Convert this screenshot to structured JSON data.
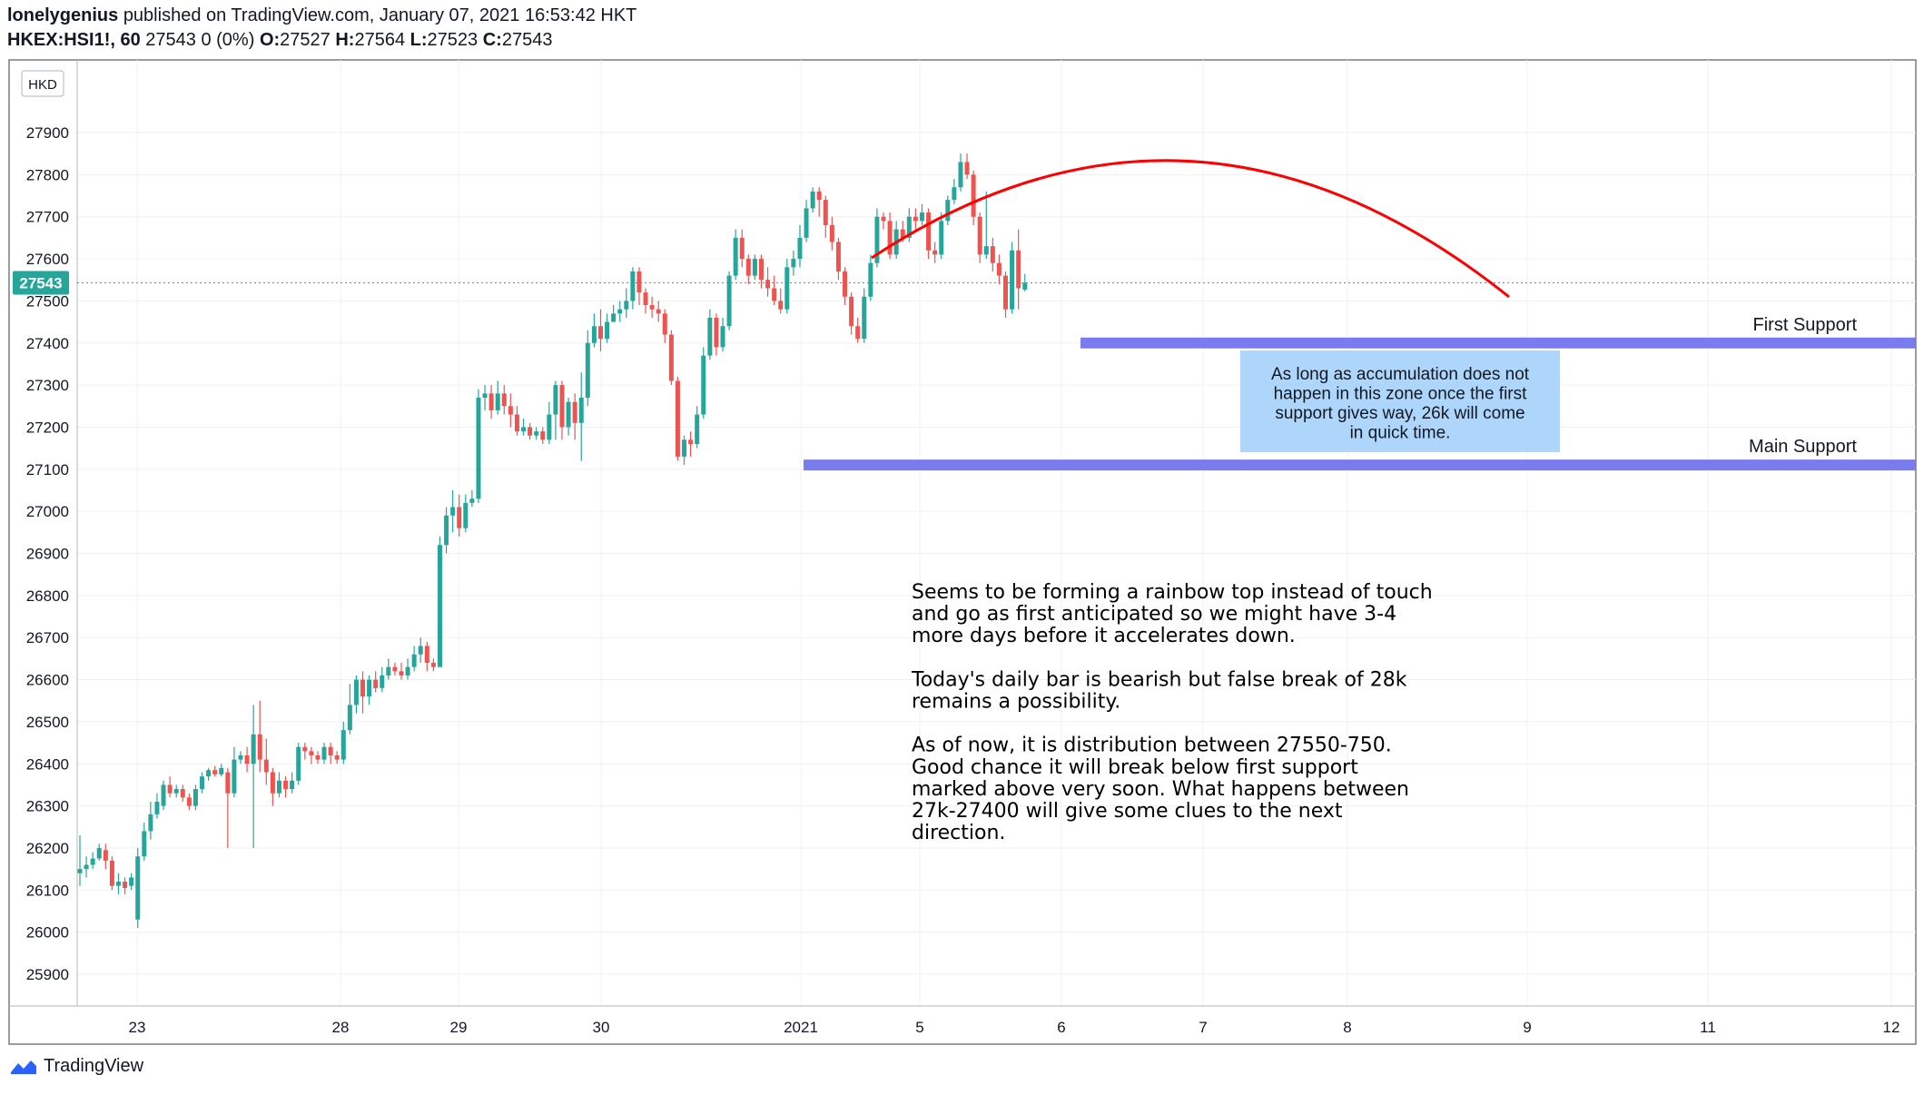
{
  "header": {
    "author": "lonelygenius",
    "published": "published on TradingView.com, January 07, 2021 16:53:42 HKT",
    "symbol": "HKEX:HSI1!, 60",
    "last": "27543",
    "change": "0 (0%)",
    "o_label": "O:",
    "o_value": "27527",
    "h_label": "H:",
    "h_value": "27564",
    "l_label": "L:",
    "l_value": "27523",
    "c_label": "C:",
    "c_value": "27543"
  },
  "footer": {
    "brand": "TradingView"
  },
  "colors": {
    "up": "#26a69a",
    "down": "#ef5350",
    "support_band": "#7b7bf0",
    "arc": "#ff0000",
    "note_box": "#aed6fb",
    "price_tag": "#26a69a",
    "grid": "#eef0f4"
  },
  "chart_data": {
    "type": "candlestick",
    "currency": "HKD",
    "current_price": 27543,
    "ylim": [
      25820,
      28000
    ],
    "y_ticks": [
      25900,
      26000,
      26100,
      26200,
      26300,
      26400,
      26500,
      26600,
      26700,
      26800,
      26900,
      27000,
      27100,
      27200,
      27300,
      27400,
      27500,
      27600,
      27700,
      27800,
      27900
    ],
    "x_ticks": [
      "23",
      "28",
      "29",
      "30",
      "2021",
      "5",
      "6",
      "7",
      "8",
      "9",
      "11",
      "12"
    ],
    "candles": [
      [
        26140,
        26150,
        26110,
        26230
      ],
      [
        26150,
        26160,
        26130,
        26180
      ],
      [
        26160,
        26175,
        26150,
        26190
      ],
      [
        26175,
        26200,
        26170,
        26210
      ],
      [
        26195,
        26170,
        26150,
        26210
      ],
      [
        26170,
        26110,
        26100,
        26180
      ],
      [
        26110,
        26120,
        26090,
        26140
      ],
      [
        26120,
        26105,
        26090,
        26130
      ],
      [
        26110,
        26130,
        26100,
        26140
      ],
      [
        26030,
        26180,
        26010,
        26200
      ],
      [
        26180,
        26240,
        26170,
        26260
      ],
      [
        26240,
        26280,
        26220,
        26310
      ],
      [
        26280,
        26310,
        26270,
        26330
      ],
      [
        26300,
        26350,
        26290,
        26360
      ],
      [
        26350,
        26330,
        26320,
        26370
      ],
      [
        26330,
        26340,
        26320,
        26350
      ],
      [
        26340,
        26320,
        26310,
        26350
      ],
      [
        26320,
        26300,
        26290,
        26330
      ],
      [
        26300,
        26340,
        26290,
        26350
      ],
      [
        26340,
        26370,
        26330,
        26380
      ],
      [
        26370,
        26385,
        26360,
        26390
      ],
      [
        26385,
        26375,
        26370,
        26395
      ],
      [
        26375,
        26390,
        26370,
        26400
      ],
      [
        26380,
        26330,
        26200,
        26390
      ],
      [
        26330,
        26410,
        26320,
        26440
      ],
      [
        26410,
        26420,
        26400,
        26430
      ],
      [
        26420,
        26400,
        26380,
        26440
      ],
      [
        26400,
        26470,
        26200,
        26540
      ],
      [
        26470,
        26410,
        26380,
        26550
      ],
      [
        26410,
        26380,
        26350,
        26460
      ],
      [
        26380,
        26330,
        26300,
        26390
      ],
      [
        26330,
        26360,
        26320,
        26380
      ],
      [
        26360,
        26340,
        26320,
        26370
      ],
      [
        26340,
        26360,
        26330,
        26380
      ],
      [
        26360,
        26440,
        26350,
        26450
      ],
      [
        26440,
        26430,
        26410,
        26450
      ],
      [
        26430,
        26420,
        26400,
        26440
      ],
      [
        26420,
        26410,
        26400,
        26430
      ],
      [
        26410,
        26440,
        26400,
        26450
      ],
      [
        26440,
        26420,
        26400,
        26450
      ],
      [
        26420,
        26410,
        26400,
        26430
      ],
      [
        26410,
        26480,
        26400,
        26500
      ],
      [
        26480,
        26540,
        26470,
        26590
      ],
      [
        26540,
        26600,
        26520,
        26610
      ],
      [
        26600,
        26560,
        26520,
        26620
      ],
      [
        26560,
        26600,
        26540,
        26610
      ],
      [
        26600,
        26580,
        26570,
        26620
      ],
      [
        26580,
        26610,
        26570,
        26630
      ],
      [
        26610,
        26630,
        26600,
        26650
      ],
      [
        26630,
        26620,
        26610,
        26640
      ],
      [
        26620,
        26610,
        26600,
        26640
      ],
      [
        26610,
        26630,
        26600,
        26650
      ],
      [
        26630,
        26660,
        26620,
        26680
      ],
      [
        26660,
        26680,
        26640,
        26700
      ],
      [
        26680,
        26640,
        26620,
        26690
      ],
      [
        26640,
        26630,
        26620,
        26650
      ],
      [
        26630,
        26920,
        26630,
        26940
      ],
      [
        26920,
        26990,
        26900,
        27010
      ],
      [
        26990,
        27010,
        26950,
        27050
      ],
      [
        27010,
        26960,
        26940,
        27040
      ],
      [
        26960,
        27020,
        26950,
        27040
      ],
      [
        27020,
        27030,
        27010,
        27050
      ],
      [
        27030,
        27270,
        27020,
        27290
      ],
      [
        27270,
        27280,
        27240,
        27300
      ],
      [
        27280,
        27240,
        27220,
        27300
      ],
      [
        27240,
        27280,
        27230,
        27310
      ],
      [
        27280,
        27250,
        27230,
        27300
      ],
      [
        27250,
        27230,
        27200,
        27280
      ],
      [
        27230,
        27190,
        27180,
        27250
      ],
      [
        27190,
        27200,
        27180,
        27220
      ],
      [
        27200,
        27180,
        27170,
        27210
      ],
      [
        27180,
        27190,
        27170,
        27200
      ],
      [
        27190,
        27170,
        27160,
        27200
      ],
      [
        27170,
        27230,
        27160,
        27260
      ],
      [
        27230,
        27300,
        27170,
        27310
      ],
      [
        27300,
        27200,
        27170,
        27310
      ],
      [
        27200,
        27260,
        27180,
        27270
      ],
      [
        27260,
        27210,
        27170,
        27280
      ],
      [
        27210,
        27270,
        27120,
        27330
      ],
      [
        27270,
        27400,
        27250,
        27430
      ],
      [
        27400,
        27440,
        27390,
        27470
      ],
      [
        27440,
        27410,
        27380,
        27480
      ],
      [
        27410,
        27450,
        27400,
        27470
      ],
      [
        27450,
        27470,
        27450,
        27490
      ],
      [
        27470,
        27480,
        27450,
        27500
      ],
      [
        27480,
        27500,
        27460,
        27530
      ],
      [
        27500,
        27570,
        27480,
        27580
      ],
      [
        27570,
        27520,
        27490,
        27580
      ],
      [
        27520,
        27490,
        27470,
        27530
      ],
      [
        27490,
        27480,
        27460,
        27510
      ],
      [
        27480,
        27470,
        27450,
        27500
      ],
      [
        27470,
        27420,
        27400,
        27480
      ],
      [
        27420,
        27310,
        27300,
        27430
      ],
      [
        27310,
        27130,
        27120,
        27320
      ],
      [
        27130,
        27170,
        27110,
        27180
      ],
      [
        27170,
        27160,
        27130,
        27190
      ],
      [
        27160,
        27230,
        27150,
        27250
      ],
      [
        27230,
        27370,
        27220,
        27390
      ],
      [
        27370,
        27460,
        27360,
        27480
      ],
      [
        27460,
        27390,
        27370,
        27470
      ],
      [
        27390,
        27440,
        27380,
        27460
      ],
      [
        27440,
        27560,
        27430,
        27570
      ],
      [
        27560,
        27650,
        27550,
        27670
      ],
      [
        27650,
        27600,
        27580,
        27670
      ],
      [
        27600,
        27560,
        27540,
        27610
      ],
      [
        27560,
        27600,
        27550,
        27610
      ],
      [
        27600,
        27550,
        27530,
        27610
      ],
      [
        27550,
        27530,
        27510,
        27580
      ],
      [
        27530,
        27500,
        27490,
        27560
      ],
      [
        27500,
        27480,
        27470,
        27530
      ],
      [
        27480,
        27580,
        27470,
        27600
      ],
      [
        27580,
        27600,
        27560,
        27620
      ],
      [
        27600,
        27650,
        27580,
        27680
      ],
      [
        27650,
        27720,
        27640,
        27740
      ],
      [
        27720,
        27760,
        27710,
        27770
      ],
      [
        27760,
        27740,
        27700,
        27770
      ],
      [
        27740,
        27680,
        27650,
        27750
      ],
      [
        27680,
        27640,
        27620,
        27700
      ],
      [
        27640,
        27570,
        27550,
        27650
      ],
      [
        27570,
        27510,
        27490,
        27580
      ],
      [
        27510,
        27440,
        27420,
        27520
      ],
      [
        27440,
        27410,
        27400,
        27460
      ],
      [
        27410,
        27510,
        27400,
        27530
      ],
      [
        27510,
        27590,
        27500,
        27610
      ],
      [
        27590,
        27700,
        27580,
        27720
      ],
      [
        27700,
        27690,
        27670,
        27710
      ],
      [
        27690,
        27610,
        27600,
        27710
      ],
      [
        27610,
        27670,
        27600,
        27690
      ],
      [
        27670,
        27650,
        27640,
        27690
      ],
      [
        27650,
        27700,
        27640,
        27720
      ],
      [
        27700,
        27690,
        27670,
        27720
      ],
      [
        27690,
        27710,
        27680,
        27730
      ],
      [
        27710,
        27620,
        27600,
        27720
      ],
      [
        27620,
        27610,
        27590,
        27640
      ],
      [
        27610,
        27690,
        27600,
        27710
      ],
      [
        27690,
        27740,
        27680,
        27750
      ],
      [
        27740,
        27770,
        27730,
        27790
      ],
      [
        27770,
        27830,
        27760,
        27850
      ],
      [
        27830,
        27800,
        27790,
        27850
      ],
      [
        27800,
        27700,
        27680,
        27810
      ],
      [
        27700,
        27610,
        27590,
        27710
      ],
      [
        27610,
        27630,
        27600,
        27760
      ],
      [
        27630,
        27590,
        27570,
        27650
      ],
      [
        27590,
        27560,
        27540,
        27610
      ],
      [
        27560,
        27480,
        27460,
        27570
      ],
      [
        27480,
        27620,
        27470,
        27640
      ],
      [
        27620,
        27530,
        27480,
        27670
      ],
      [
        27527,
        27543,
        27523,
        27564
      ]
    ],
    "support_levels": [
      {
        "label": "First Support",
        "price": 27400
      },
      {
        "label": "Main Support",
        "price": 27110
      }
    ],
    "note_box": [
      "As long as accumulation does not",
      "happen in this zone once the first",
      "support gives way, 26k will come",
      "in quick time."
    ],
    "commentary": [
      "Seems to be forming a rainbow top instead of touch",
      "and go as first anticipated so we might have 3-4",
      "more days before it accelerates down.",
      "",
      "Today's daily bar is bearish but false break of 28k",
      "remains a possibility.",
      "",
      "As of now, it is distribution between 27550-750.",
      "Good chance it will break below first support",
      "marked above very soon. What happens between",
      "27k-27400 will give some clues to the next",
      "direction."
    ]
  }
}
